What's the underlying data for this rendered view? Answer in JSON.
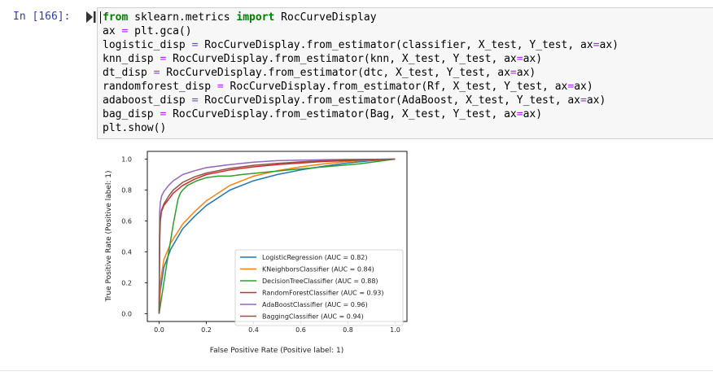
{
  "prompt": "In [166]:",
  "code_lines": [
    [
      {
        "t": "from",
        "c": "kw"
      },
      {
        "t": " sklearn.metrics "
      },
      {
        "t": "import",
        "c": "kw"
      },
      {
        "t": " RocCurveDisplay"
      }
    ],
    [
      {
        "t": "ax "
      },
      {
        "t": "=",
        "c": "op"
      },
      {
        "t": " plt.gca()"
      }
    ],
    [
      {
        "t": "logistic_disp "
      },
      {
        "t": "=",
        "c": "op"
      },
      {
        "t": " RocCurveDisplay.from_estimator(classifier, X_test, Y_test, ax"
      },
      {
        "t": "=",
        "c": "op"
      },
      {
        "t": "ax)"
      }
    ],
    [
      {
        "t": "knn_disp "
      },
      {
        "t": "=",
        "c": "op"
      },
      {
        "t": " RocCurveDisplay.from_estimator(knn, X_test, Y_test, ax"
      },
      {
        "t": "=",
        "c": "op"
      },
      {
        "t": "ax)"
      }
    ],
    [
      {
        "t": "dt_disp "
      },
      {
        "t": "=",
        "c": "op"
      },
      {
        "t": " RocCurveDisplay.from_estimator(dtc, X_test, Y_test, ax"
      },
      {
        "t": "=",
        "c": "op"
      },
      {
        "t": "ax)"
      }
    ],
    [
      {
        "t": "randomforest_disp "
      },
      {
        "t": "=",
        "c": "op"
      },
      {
        "t": " RocCurveDisplay.from_estimator(Rf, X_test, Y_test, ax"
      },
      {
        "t": "=",
        "c": "op"
      },
      {
        "t": "ax)"
      }
    ],
    [
      {
        "t": "adaboost_disp "
      },
      {
        "t": "=",
        "c": "op"
      },
      {
        "t": " RocCurveDisplay.from_estimator(AdaBoost, X_test, Y_test, ax"
      },
      {
        "t": "=",
        "c": "op"
      },
      {
        "t": "ax)"
      }
    ],
    [
      {
        "t": "bag_disp "
      },
      {
        "t": "=",
        "c": "op"
      },
      {
        "t": " RocCurveDisplay.from_estimator(Bag, X_test, Y_test, ax"
      },
      {
        "t": "=",
        "c": "op"
      },
      {
        "t": "ax)"
      }
    ],
    [
      {
        "t": "plt.show()"
      }
    ]
  ],
  "chart_data": {
    "type": "line",
    "xlabel": "False Positive Rate (Positive label: 1)",
    "ylabel": "True Positive Rate (Positive label: 1)",
    "xlim": [
      0.0,
      1.0
    ],
    "ylim": [
      0.0,
      1.0
    ],
    "xticks": [
      0.0,
      0.2,
      0.4,
      0.6,
      0.8,
      1.0
    ],
    "yticks": [
      0.0,
      0.2,
      0.4,
      0.6,
      0.8,
      1.0
    ],
    "xtick_labels": [
      "0.0",
      "0.2",
      "0.4",
      "0.6",
      "0.8",
      "1.0"
    ],
    "ytick_labels": [
      "0.0",
      "0.2",
      "0.4",
      "0.6",
      "0.8",
      "1.0"
    ],
    "grid": false,
    "legend_position": "lower-right",
    "series": [
      {
        "name": "LogisticRegression (AUC = 0.82)",
        "color": "#1f77b4",
        "x": [
          0,
          0.005,
          0.02,
          0.05,
          0.1,
          0.15,
          0.2,
          0.3,
          0.4,
          0.5,
          0.6,
          0.7,
          0.8,
          0.9,
          1.0
        ],
        "y": [
          0,
          0.15,
          0.3,
          0.42,
          0.55,
          0.63,
          0.7,
          0.8,
          0.86,
          0.9,
          0.93,
          0.955,
          0.975,
          0.99,
          1.0
        ]
      },
      {
        "name": "KNeighborsClassifier (AUC = 0.84)",
        "color": "#ff7f0e",
        "x": [
          0,
          0.005,
          0.02,
          0.05,
          0.1,
          0.15,
          0.2,
          0.3,
          0.4,
          0.5,
          0.6,
          0.7,
          0.8,
          0.9,
          1.0
        ],
        "y": [
          0,
          0.2,
          0.35,
          0.46,
          0.58,
          0.66,
          0.73,
          0.83,
          0.89,
          0.925,
          0.95,
          0.97,
          0.985,
          0.995,
          1.0
        ]
      },
      {
        "name": "DecisionTreeClassifier (AUC = 0.88)",
        "color": "#2ca02c",
        "x": [
          0,
          0.03,
          0.06,
          0.08,
          0.09,
          0.1,
          0.12,
          0.16,
          0.2,
          0.25,
          0.3,
          0.35,
          0.45,
          0.55,
          0.7,
          0.85,
          1.0
        ],
        "y": [
          0,
          0.3,
          0.58,
          0.74,
          0.78,
          0.8,
          0.83,
          0.86,
          0.88,
          0.89,
          0.89,
          0.9,
          0.915,
          0.93,
          0.95,
          0.97,
          1.0
        ]
      },
      {
        "name": "RandomForestClassifier (AUC = 0.93)",
        "color": "#d62728",
        "x": [
          0,
          0.002,
          0.005,
          0.01,
          0.02,
          0.04,
          0.06,
          0.1,
          0.15,
          0.2,
          0.3,
          0.4,
          0.5,
          0.6,
          0.7,
          0.8,
          0.9,
          1.0
        ],
        "y": [
          0,
          0.45,
          0.6,
          0.66,
          0.7,
          0.74,
          0.78,
          0.83,
          0.87,
          0.9,
          0.93,
          0.95,
          0.965,
          0.975,
          0.985,
          0.99,
          0.997,
          1.0
        ]
      },
      {
        "name": "AdaBoostClassifier (AUC = 0.96)",
        "color": "#9467bd",
        "x": [
          0,
          0.002,
          0.005,
          0.01,
          0.02,
          0.04,
          0.06,
          0.1,
          0.15,
          0.2,
          0.3,
          0.4,
          0.5,
          0.6,
          0.7,
          0.8,
          0.9,
          1.0
        ],
        "y": [
          0,
          0.65,
          0.72,
          0.76,
          0.79,
          0.83,
          0.86,
          0.9,
          0.925,
          0.945,
          0.965,
          0.98,
          0.99,
          0.993,
          0.996,
          0.998,
          0.999,
          1.0
        ]
      },
      {
        "name": "BaggingClassifier (AUC = 0.94)",
        "color": "#8c564b",
        "x": [
          0,
          0.002,
          0.005,
          0.01,
          0.02,
          0.04,
          0.06,
          0.1,
          0.15,
          0.2,
          0.3,
          0.4,
          0.5,
          0.6,
          0.7,
          0.8,
          0.9,
          1.0
        ],
        "y": [
          0,
          0.5,
          0.62,
          0.67,
          0.71,
          0.76,
          0.8,
          0.85,
          0.885,
          0.91,
          0.94,
          0.96,
          0.972,
          0.982,
          0.99,
          0.995,
          0.998,
          1.0
        ]
      }
    ]
  }
}
